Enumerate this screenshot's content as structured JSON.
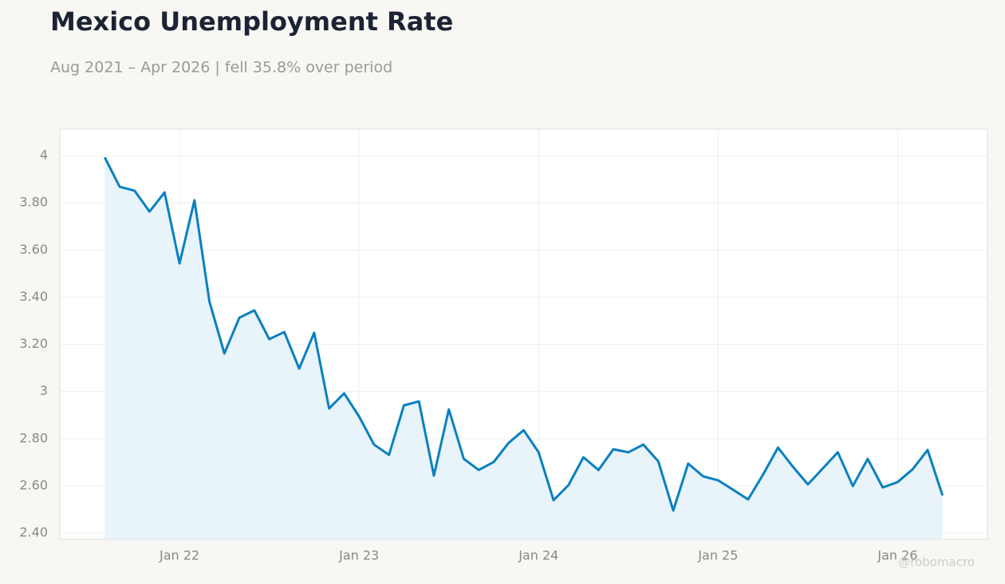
{
  "chart_data": {
    "type": "line",
    "title": "Mexico Unemployment Rate",
    "subtitle": "Aug 2021 – Apr 2026 | fell 35.8% over period",
    "watermark": "@robomacro",
    "x": [
      "2021-08",
      "2021-09",
      "2021-10",
      "2021-11",
      "2021-12",
      "2022-01",
      "2022-02",
      "2022-03",
      "2022-04",
      "2022-05",
      "2022-06",
      "2022-07",
      "2022-08",
      "2022-09",
      "2022-10",
      "2022-11",
      "2022-12",
      "2023-01",
      "2023-02",
      "2023-03",
      "2023-04",
      "2023-05",
      "2023-06",
      "2023-07",
      "2023-08",
      "2023-09",
      "2023-10",
      "2023-11",
      "2023-12",
      "2024-01",
      "2024-02",
      "2024-03",
      "2024-04",
      "2024-05",
      "2024-06",
      "2024-07",
      "2024-08",
      "2024-09",
      "2024-10",
      "2024-11",
      "2024-12",
      "2025-01",
      "2025-02",
      "2025-03",
      "2025-04",
      "2025-05",
      "2025-06",
      "2025-07",
      "2025-08",
      "2025-09",
      "2025-10",
      "2025-11",
      "2025-12",
      "2026-01",
      "2026-02",
      "2026-03",
      "2026-04"
    ],
    "series": [
      {
        "name": "Unemployment Rate",
        "color": "#0a80c0",
        "values": [
          3.993,
          3.868,
          3.851,
          3.763,
          3.844,
          3.543,
          3.811,
          3.381,
          3.161,
          3.313,
          3.344,
          3.222,
          3.252,
          3.097,
          3.249,
          2.928,
          2.992,
          2.894,
          2.775,
          2.731,
          2.941,
          2.958,
          2.643,
          2.924,
          2.714,
          2.667,
          2.701,
          2.782,
          2.836,
          2.742,
          2.539,
          2.603,
          2.721,
          2.667,
          2.755,
          2.742,
          2.775,
          2.704,
          2.495,
          2.694,
          2.64,
          2.623,
          2.583,
          2.542,
          2.647,
          2.762,
          2.681,
          2.606,
          2.674,
          2.742,
          2.599,
          2.714,
          2.593,
          2.616,
          2.67,
          2.752,
          2.559
        ]
      }
    ],
    "xlim": [
      "2021-05",
      "2026-07"
    ],
    "xticks": [
      {
        "value": "2022-01",
        "label": "Jan 22"
      },
      {
        "value": "2023-01",
        "label": "Jan 23"
      },
      {
        "value": "2024-01",
        "label": "Jan 24"
      },
      {
        "value": "2025-01",
        "label": "Jan 25"
      },
      {
        "value": "2026-01",
        "label": "Jan 26"
      }
    ],
    "ylim": [
      2.373,
      4.112
    ],
    "yticks": [
      {
        "value": 2.4,
        "label": "2.40"
      },
      {
        "value": 2.6,
        "label": "2.60"
      },
      {
        "value": 2.8,
        "label": "2.80"
      },
      3,
      {
        "value": 3.2,
        "label": "3.20"
      },
      {
        "value": 3.4,
        "label": "3.40"
      },
      {
        "value": 3.6,
        "label": "3.60"
      },
      {
        "value": 3.8,
        "label": "3.80"
      },
      4
    ],
    "grid": true,
    "area_fill": "#e8f3fa"
  }
}
